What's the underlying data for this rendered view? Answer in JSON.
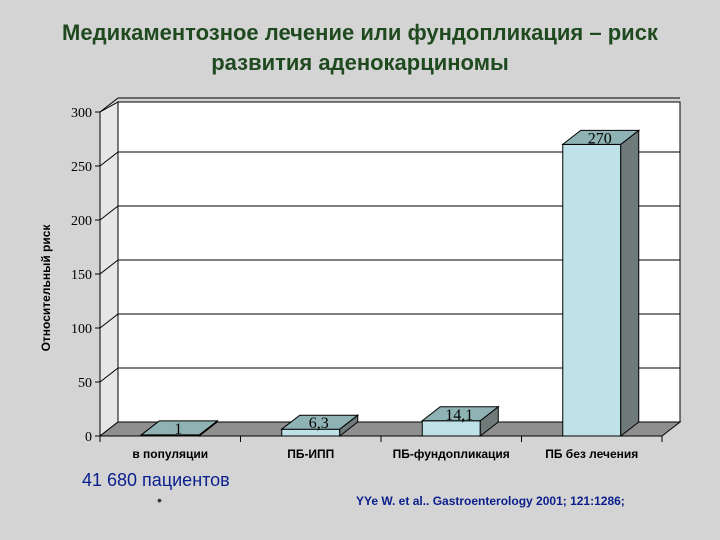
{
  "title_line1": "Медикаментозное лечение или фундопликация – риск",
  "title_line2": "развития аденокарциномы",
  "footer": {
    "patients": "41 680 пациентов",
    "bullet": "•",
    "citation": "YYe  W. et al.. Gastroenterology 2001; 121:1286;"
  },
  "chart_data": {
    "type": "bar",
    "categories": [
      "в популяции",
      "ПБ-ИПП",
      "ПБ-фундопликация",
      "ПБ без лечения"
    ],
    "values": [
      1,
      6.3,
      14.1,
      270
    ],
    "value_labels": [
      "1",
      "6,3",
      "14,1",
      "270"
    ],
    "ylabel": "Относительный риск",
    "ylim": [
      0,
      300
    ],
    "yticks": [
      0,
      50,
      100,
      150,
      200,
      250,
      300
    ],
    "grid": true,
    "bar_colors": {
      "front": "#bfe1e8",
      "top": "#8fb3b5",
      "side": "#6f7a7a"
    }
  }
}
